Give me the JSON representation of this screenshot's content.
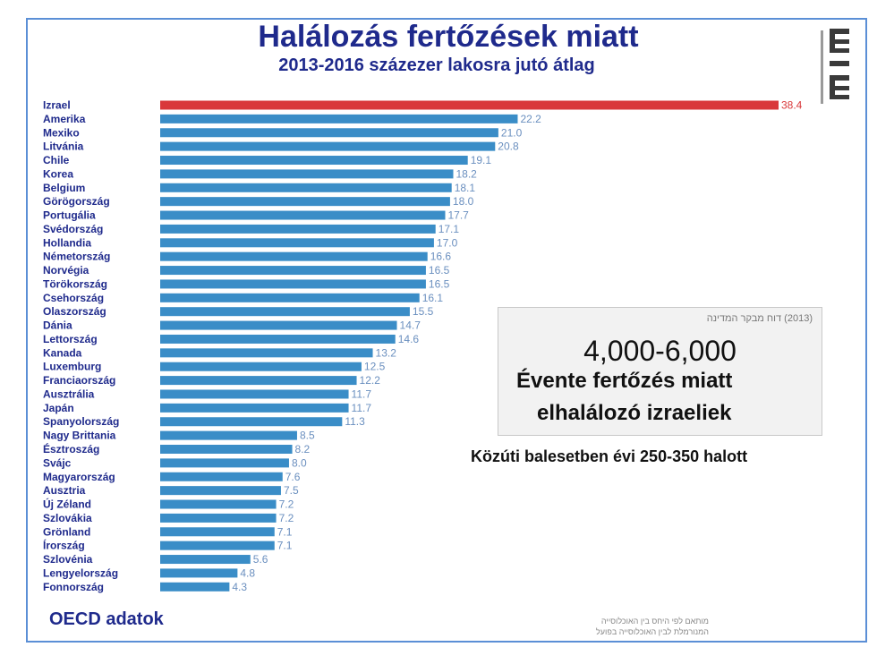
{
  "header": {
    "title": "Halálozás fertőzések miatt",
    "subtitle": "2013-2016 százezer lakosra jutó átlag"
  },
  "logo": {
    "name": "mlm-logo"
  },
  "info_box": {
    "caption": "(2013) דוח מבקר המדינה",
    "range": "4,000-6,000",
    "line1": "Évente fertőzés miatt",
    "line2": "elhalálozó izraeliek"
  },
  "road_note": "Közúti balesetben évi 250-350 halott",
  "source": "OECD adatok",
  "footnote": {
    "line1": "מותאם לפי היחס בין האוכלוסייה",
    "line2": "המנורמלת לבין האוכלוסייה בפועל"
  },
  "colors": {
    "bar": "#3a8dc7",
    "highlight": "#d9383a",
    "title": "#1f2a8c"
  },
  "chart_data": {
    "type": "bar",
    "orientation": "horizontal",
    "highlight_category": "Izrael",
    "categories": [
      "Izrael",
      "Amerika",
      "Mexiko",
      "Litvánia",
      "Chile",
      "Korea",
      "Belgium",
      "Görögország",
      "Portugália",
      "Svédország",
      "Hollandia",
      "Németország",
      "Norvégia",
      "Törökország",
      "Csehország",
      "Olaszország",
      "Dánia",
      "Lettország",
      "Kanada",
      "Luxemburg",
      "Franciaország",
      "Ausztrália",
      "Japán",
      "Spanyolország",
      "Nagy Brittania",
      "Észtroszág",
      "Svájc",
      "Magyarország",
      "Ausztria",
      "Új Zéland",
      "Szlovákia",
      "Grönland",
      "Írország",
      "Szlovénia",
      "Lengyelország",
      "Fonnország"
    ],
    "values": [
      38.4,
      22.2,
      21.0,
      20.8,
      19.1,
      18.2,
      18.1,
      18.0,
      17.7,
      17.1,
      17.0,
      16.6,
      16.5,
      16.5,
      16.1,
      15.5,
      14.7,
      14.6,
      13.2,
      12.5,
      12.2,
      11.7,
      11.7,
      11.3,
      8.5,
      8.2,
      8.0,
      7.6,
      7.5,
      7.2,
      7.2,
      7.1,
      7.1,
      5.6,
      4.8,
      4.3
    ],
    "value_labels": [
      "38.4",
      "22.2",
      "21.0",
      "20.8",
      "19.1",
      "18.2",
      "18.1",
      "18.0",
      "17.7",
      "17.1",
      "17.0",
      "16.6",
      "16.5",
      "16.5",
      "16.1",
      "15.5",
      "14.7",
      "14.6",
      "13.2",
      "12.5",
      "12.2",
      "11.7",
      "11.7",
      "11.3",
      "8.5",
      "8.2",
      "8.0",
      "7.6",
      "7.5",
      "7.2",
      "7.2",
      "7.1",
      "7.1",
      "5.6",
      "4.8",
      "4.3"
    ],
    "xlim": [
      0,
      38.4
    ],
    "grid": false,
    "legend": "none"
  }
}
